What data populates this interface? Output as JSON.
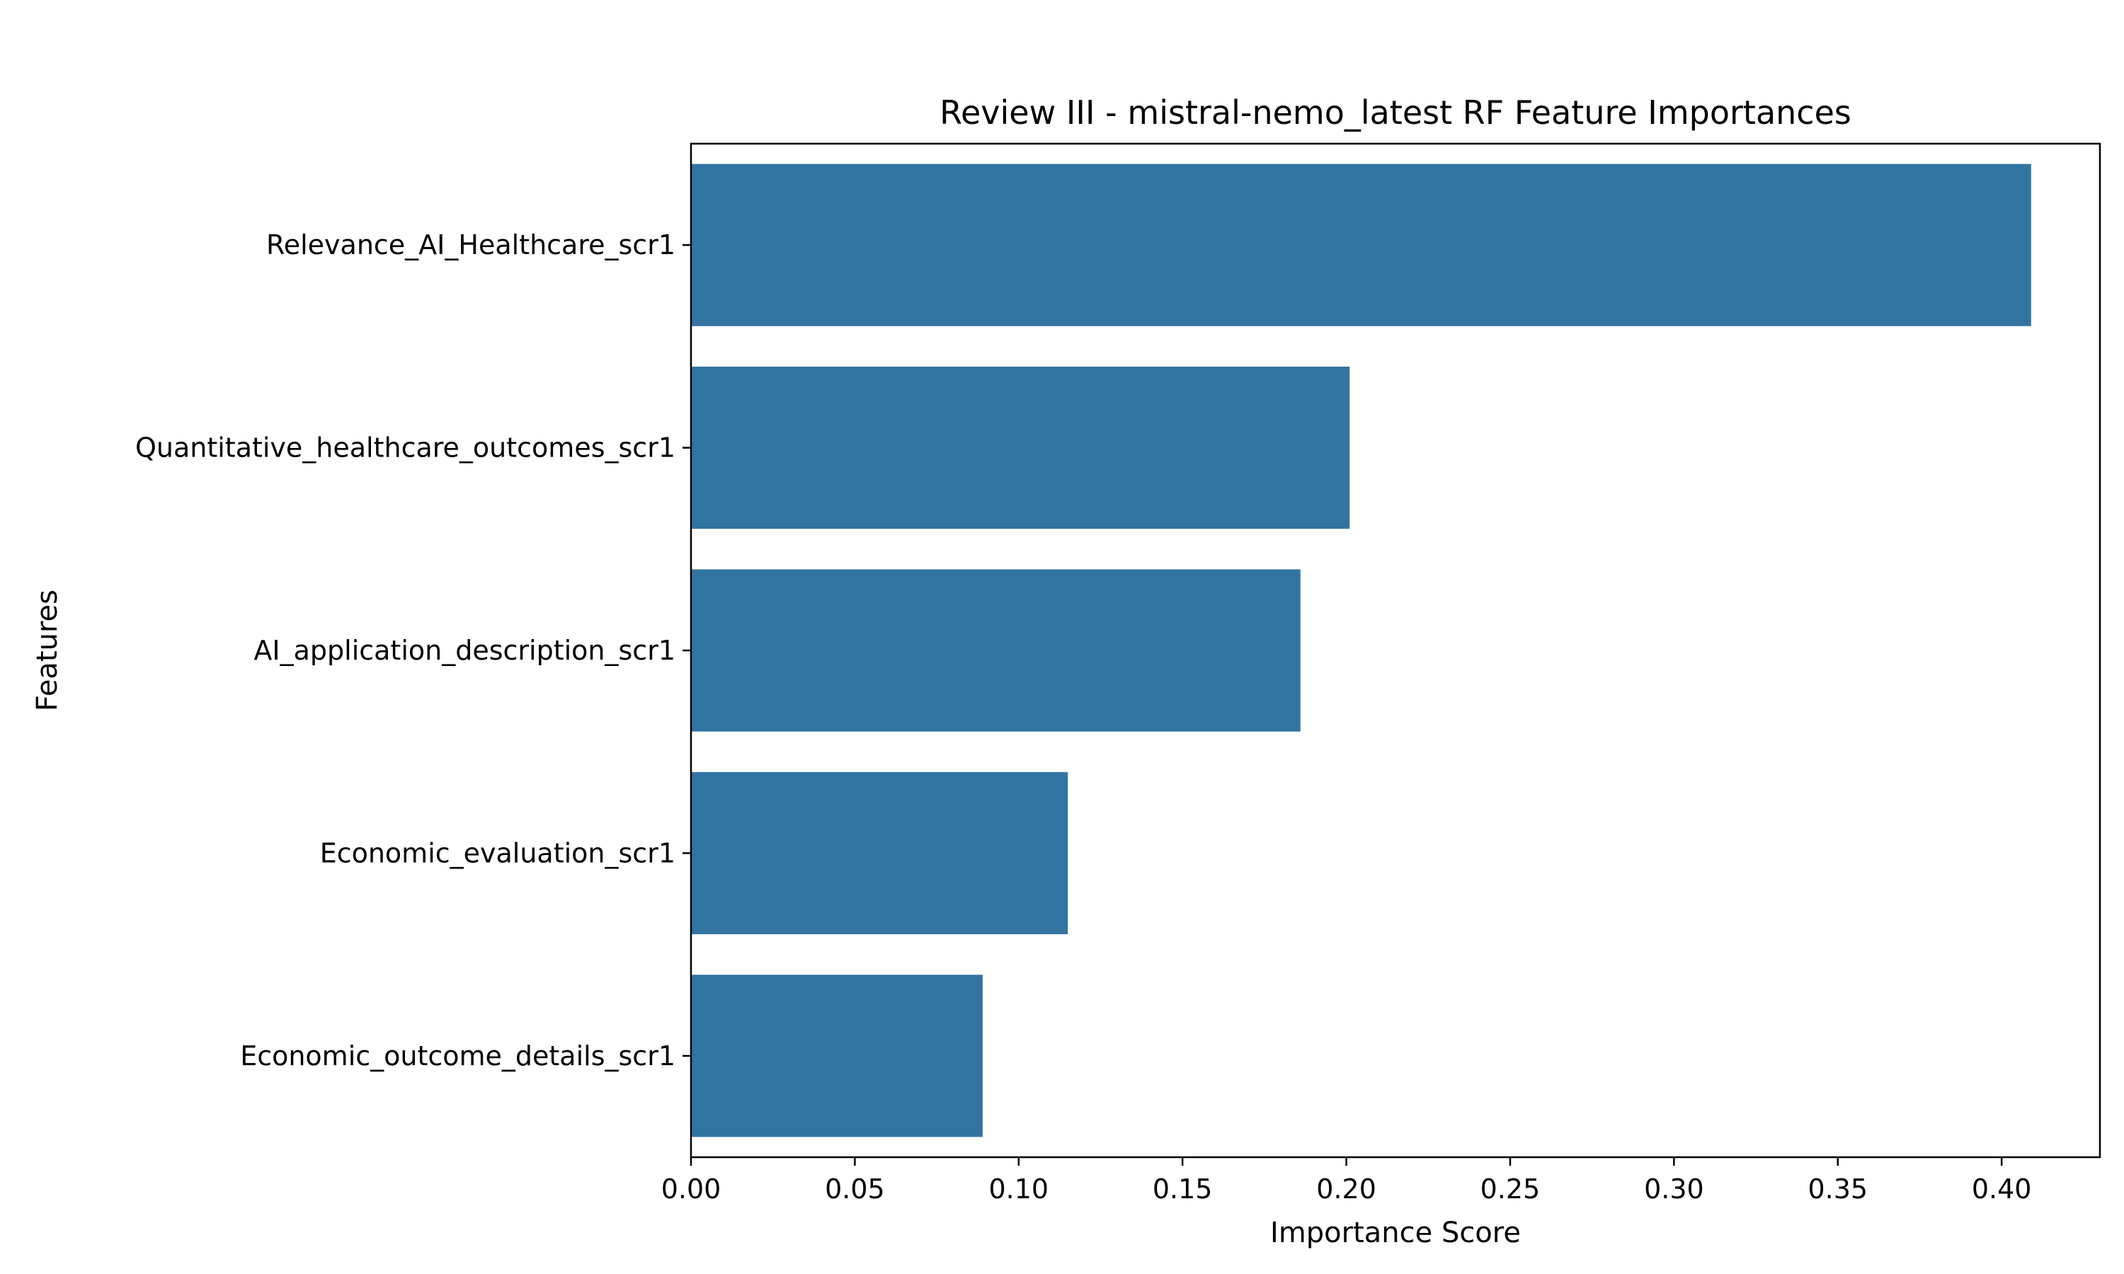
{
  "chart_data": {
    "type": "bar",
    "orientation": "horizontal",
    "title": "Review III - mistral-nemo_latest RF Feature Importances",
    "xlabel": "Importance Score",
    "ylabel": "Features",
    "categories": [
      "Relevance_AI_Healthcare_scr1",
      "Quantitative_healthcare_outcomes_scr1",
      "AI_application_description_scr1",
      "Economic_evaluation_scr1",
      "Economic_outcome_details_scr1"
    ],
    "values": [
      0.409,
      0.201,
      0.186,
      0.115,
      0.089
    ],
    "xlim": [
      0,
      0.43
    ],
    "xticks": [
      "0.00",
      "0.05",
      "0.10",
      "0.15",
      "0.20",
      "0.25",
      "0.30",
      "0.35",
      "0.40"
    ],
    "bar_color": "#3274a1",
    "grid": false,
    "legend": "none"
  }
}
